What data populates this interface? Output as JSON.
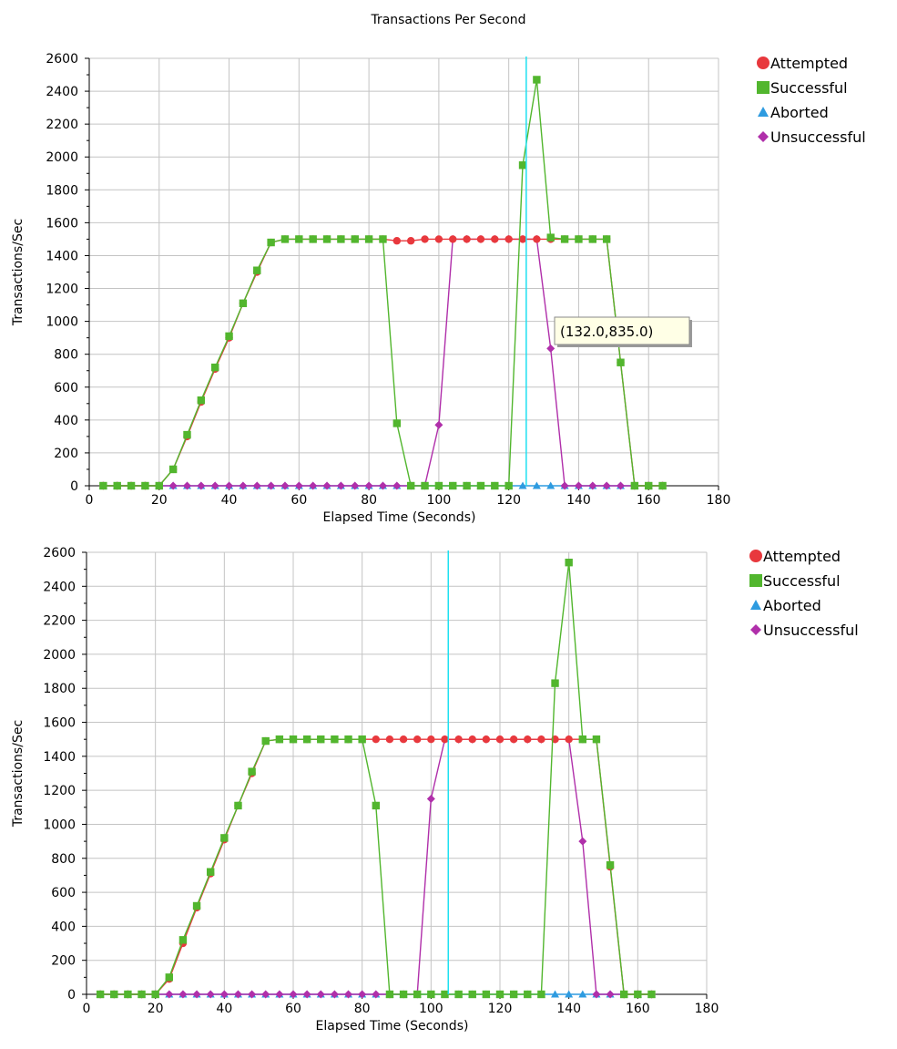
{
  "title": "Transactions Per Second",
  "tooltip": "(132.0,835.0)",
  "colors": {
    "attempted": "#e8383d",
    "successful": "#52b62e",
    "aborted": "#2e9be0",
    "unsuccessful": "#b02faa",
    "cursor": "#1ee0f0",
    "grid": "#c4c4c4"
  },
  "chart_data": [
    {
      "type": "line",
      "xlabel": "Elapsed Time (Seconds)",
      "ylabel": "Transactions/Sec",
      "xlim": [
        0,
        180
      ],
      "ylim": [
        0,
        2600
      ],
      "x_ticks": [
        0,
        20,
        40,
        60,
        80,
        100,
        120,
        140,
        160,
        180
      ],
      "y_ticks": [
        0,
        200,
        400,
        600,
        800,
        1000,
        1200,
        1400,
        1600,
        1800,
        2000,
        2200,
        2400,
        2600
      ],
      "grid": true,
      "legend": "top-right",
      "cursor_x": 125,
      "series": [
        {
          "name": "Attempted",
          "marker": "circle",
          "x": [
            4,
            8,
            12,
            16,
            20,
            24,
            28,
            32,
            36,
            40,
            44,
            48,
            52,
            56,
            60,
            64,
            68,
            72,
            76,
            80,
            84,
            88,
            92,
            96,
            100,
            104,
            108,
            112,
            116,
            120,
            124,
            128,
            132,
            136,
            140,
            144,
            148,
            152,
            156,
            160,
            164
          ],
          "y": [
            0,
            0,
            0,
            0,
            0,
            100,
            300,
            510,
            710,
            900,
            1110,
            1300,
            1480,
            1500,
            1500,
            1500,
            1500,
            1500,
            1500,
            1500,
            1500,
            1490,
            1490,
            1500,
            1500,
            1500,
            1500,
            1500,
            1500,
            1500,
            1500,
            1500,
            1500,
            1500,
            1500,
            1500,
            1500,
            750,
            0,
            0,
            0
          ]
        },
        {
          "name": "Successful",
          "marker": "square",
          "x": [
            4,
            8,
            12,
            16,
            20,
            24,
            28,
            32,
            36,
            40,
            44,
            48,
            52,
            56,
            60,
            64,
            68,
            72,
            76,
            80,
            84,
            88,
            92,
            96,
            100,
            104,
            108,
            112,
            116,
            120,
            124,
            128,
            132,
            136,
            140,
            144,
            148,
            152,
            156,
            160,
            164
          ],
          "y": [
            0,
            0,
            0,
            0,
            0,
            100,
            310,
            520,
            720,
            910,
            1110,
            1310,
            1480,
            1500,
            1500,
            1500,
            1500,
            1500,
            1500,
            1500,
            1500,
            380,
            0,
            0,
            0,
            0,
            0,
            0,
            0,
            0,
            1950,
            2470,
            1510,
            1500,
            1500,
            1500,
            1500,
            750,
            0,
            0,
            0
          ]
        },
        {
          "name": "Aborted",
          "marker": "triangle",
          "x": [
            4,
            8,
            12,
            16,
            20,
            24,
            28,
            32,
            36,
            40,
            44,
            48,
            52,
            56,
            60,
            64,
            68,
            72,
            76,
            80,
            84,
            88,
            92,
            96,
            100,
            104,
            108,
            112,
            116,
            120,
            124,
            128,
            132,
            136,
            140,
            144,
            148,
            152,
            156,
            160,
            164
          ],
          "y": [
            0,
            0,
            0,
            0,
            0,
            0,
            0,
            0,
            0,
            0,
            0,
            0,
            0,
            0,
            0,
            0,
            0,
            0,
            0,
            0,
            0,
            0,
            0,
            0,
            0,
            0,
            0,
            0,
            0,
            0,
            0,
            0,
            0,
            0,
            0,
            0,
            0,
            0,
            0,
            0,
            0
          ]
        },
        {
          "name": "Unsuccessful",
          "marker": "diamond",
          "x": [
            4,
            8,
            12,
            16,
            20,
            24,
            28,
            32,
            36,
            40,
            44,
            48,
            52,
            56,
            60,
            64,
            68,
            72,
            76,
            80,
            84,
            88,
            92,
            96,
            100,
            104,
            108,
            112,
            116,
            120,
            124,
            128,
            132,
            136,
            140,
            144,
            148,
            152,
            156,
            160,
            164
          ],
          "y": [
            0,
            0,
            0,
            0,
            0,
            0,
            0,
            0,
            0,
            0,
            0,
            0,
            0,
            0,
            0,
            0,
            0,
            0,
            0,
            0,
            0,
            0,
            0,
            0,
            370,
            1500,
            1500,
            1500,
            1500,
            1500,
            1500,
            1500,
            835,
            0,
            0,
            0,
            0,
            0,
            0,
            0,
            0
          ]
        }
      ]
    },
    {
      "type": "line",
      "xlabel": "Elapsed Time (Seconds)",
      "ylabel": "Transactions/Sec",
      "xlim": [
        0,
        180
      ],
      "ylim": [
        0,
        2600
      ],
      "x_ticks": [
        0,
        20,
        40,
        60,
        80,
        100,
        120,
        140,
        160,
        180
      ],
      "y_ticks": [
        0,
        200,
        400,
        600,
        800,
        1000,
        1200,
        1400,
        1600,
        1800,
        2000,
        2200,
        2400,
        2600
      ],
      "grid": true,
      "legend": "top-right",
      "cursor_x": 105,
      "series": [
        {
          "name": "Attempted",
          "marker": "circle",
          "x": [
            4,
            8,
            12,
            16,
            20,
            24,
            28,
            32,
            36,
            40,
            44,
            48,
            52,
            56,
            60,
            64,
            68,
            72,
            76,
            80,
            84,
            88,
            92,
            96,
            100,
            104,
            108,
            112,
            116,
            120,
            124,
            128,
            132,
            136,
            140,
            144,
            148,
            152,
            156,
            160,
            164
          ],
          "y": [
            0,
            0,
            0,
            0,
            0,
            90,
            300,
            510,
            710,
            910,
            1110,
            1300,
            1490,
            1500,
            1500,
            1500,
            1500,
            1500,
            1500,
            1500,
            1500,
            1500,
            1500,
            1500,
            1500,
            1500,
            1500,
            1500,
            1500,
            1500,
            1500,
            1500,
            1500,
            1500,
            1500,
            1500,
            1500,
            750,
            0,
            0,
            0
          ]
        },
        {
          "name": "Successful",
          "marker": "square",
          "x": [
            4,
            8,
            12,
            16,
            20,
            24,
            28,
            32,
            36,
            40,
            44,
            48,
            52,
            56,
            60,
            64,
            68,
            72,
            76,
            80,
            84,
            88,
            92,
            96,
            100,
            104,
            108,
            112,
            116,
            120,
            124,
            128,
            132,
            136,
            140,
            144,
            148,
            152,
            156,
            160,
            164
          ],
          "y": [
            0,
            0,
            0,
            0,
            0,
            100,
            320,
            520,
            720,
            920,
            1110,
            1310,
            1490,
            1500,
            1500,
            1500,
            1500,
            1500,
            1500,
            1500,
            1110,
            0,
            0,
            0,
            0,
            0,
            0,
            0,
            0,
            0,
            0,
            0,
            0,
            1830,
            2540,
            1500,
            1500,
            760,
            0,
            0,
            0
          ]
        },
        {
          "name": "Aborted",
          "marker": "triangle",
          "x": [
            4,
            8,
            12,
            16,
            20,
            24,
            28,
            32,
            36,
            40,
            44,
            48,
            52,
            56,
            60,
            64,
            68,
            72,
            76,
            80,
            84,
            88,
            92,
            96,
            100,
            104,
            108,
            112,
            116,
            120,
            124,
            128,
            132,
            136,
            140,
            144,
            148,
            152,
            156,
            160,
            164
          ],
          "y": [
            0,
            0,
            0,
            0,
            0,
            0,
            0,
            0,
            0,
            0,
            0,
            0,
            0,
            0,
            0,
            0,
            0,
            0,
            0,
            0,
            0,
            0,
            0,
            0,
            0,
            0,
            0,
            0,
            0,
            0,
            0,
            0,
            0,
            0,
            0,
            0,
            0,
            0,
            0,
            0,
            0
          ]
        },
        {
          "name": "Unsuccessful",
          "marker": "diamond",
          "x": [
            4,
            8,
            12,
            16,
            20,
            24,
            28,
            32,
            36,
            40,
            44,
            48,
            52,
            56,
            60,
            64,
            68,
            72,
            76,
            80,
            84,
            88,
            92,
            96,
            100,
            104,
            108,
            112,
            116,
            120,
            124,
            128,
            132,
            136,
            140,
            144,
            148,
            152,
            156,
            160,
            164
          ],
          "y": [
            0,
            0,
            0,
            0,
            0,
            0,
            0,
            0,
            0,
            0,
            0,
            0,
            0,
            0,
            0,
            0,
            0,
            0,
            0,
            0,
            0,
            0,
            0,
            0,
            1150,
            1500,
            1500,
            1500,
            1500,
            1500,
            1500,
            1500,
            1500,
            1500,
            1500,
            900,
            0,
            0,
            0,
            0,
            0
          ]
        }
      ]
    }
  ]
}
